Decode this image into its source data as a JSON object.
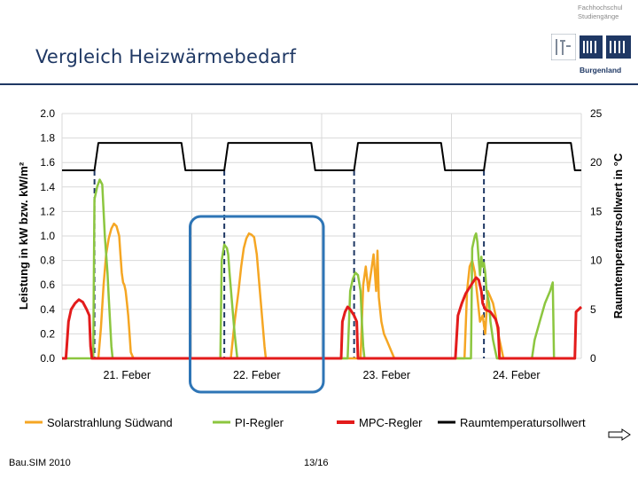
{
  "slide": {
    "title": "Vergleich Heizwärmebedarf",
    "footer_left": "Bau.SIM 2010",
    "page": "13/16",
    "next_icon": "arrow-right-icon"
  },
  "logo": {
    "line1": "Fachhochschul",
    "line2": "Studiengänge",
    "region": "Burgenland"
  },
  "chart_data": {
    "type": "line",
    "ylabel": "Leistung in kW bzw. kW/m²",
    "y2label": "Raumtemperatursollwert in °C",
    "ylim": [
      0,
      2.0
    ],
    "y2lim": [
      0,
      25
    ],
    "yticks": [
      "0.0",
      "0.2",
      "0.4",
      "0.6",
      "0.8",
      "1.0",
      "1.2",
      "1.4",
      "1.6",
      "1.8",
      "2.0"
    ],
    "y2ticks": [
      "0",
      "5",
      "10",
      "15",
      "20",
      "25"
    ],
    "xlim": [
      0,
      4
    ],
    "categories": [
      "21. Feber",
      "22. Feber",
      "23. Feber",
      "24. Feber"
    ],
    "grid": true,
    "legend": "bottom",
    "highlight_box": {
      "day": "22. Feber"
    },
    "colors": {
      "solar": "#f5a623",
      "pi": "#8cc63f",
      "mpc": "#e31b1b",
      "setpoint": "#000000",
      "box": "#2e75b6",
      "dash": "#1f3864"
    },
    "series": [
      {
        "name": "Solarstrahlung Südwand",
        "axis": "y",
        "points": [
          [
            0.28,
            0
          ],
          [
            0.3,
            0.25
          ],
          [
            0.32,
            0.6
          ],
          [
            0.34,
            0.85
          ],
          [
            0.36,
            0.98
          ],
          [
            0.38,
            1.06
          ],
          [
            0.4,
            1.1
          ],
          [
            0.42,
            1.08
          ],
          [
            0.44,
            1.0
          ],
          [
            0.45,
            0.85
          ],
          [
            0.46,
            0.7
          ],
          [
            0.47,
            0.62
          ],
          [
            0.48,
            0.6
          ],
          [
            0.49,
            0.55
          ],
          [
            0.5,
            0.45
          ],
          [
            0.51,
            0.35
          ],
          [
            0.52,
            0.2
          ],
          [
            0.53,
            0.05
          ],
          [
            0.55,
            0
          ],
          [
            1.3,
            0
          ],
          [
            1.33,
            0.3
          ],
          [
            1.36,
            0.55
          ],
          [
            1.38,
            0.75
          ],
          [
            1.4,
            0.9
          ],
          [
            1.42,
            0.98
          ],
          [
            1.44,
            1.02
          ],
          [
            1.46,
            1.01
          ],
          [
            1.48,
            0.99
          ],
          [
            1.5,
            0.85
          ],
          [
            1.52,
            0.6
          ],
          [
            1.54,
            0.35
          ],
          [
            1.56,
            0.1
          ],
          [
            1.57,
            0
          ],
          [
            2.3,
            0
          ],
          [
            2.32,
            0.6
          ],
          [
            2.34,
            0.75
          ],
          [
            2.36,
            0.55
          ],
          [
            2.38,
            0.7
          ],
          [
            2.4,
            0.85
          ],
          [
            2.42,
            0.55
          ],
          [
            2.43,
            0.88
          ],
          [
            2.44,
            0.5
          ],
          [
            2.46,
            0.3
          ],
          [
            2.48,
            0.2
          ],
          [
            2.5,
            0.15
          ],
          [
            2.52,
            0.1
          ],
          [
            2.54,
            0.05
          ],
          [
            2.56,
            0
          ],
          [
            3.1,
            0
          ],
          [
            3.12,
            0.55
          ],
          [
            3.14,
            0.75
          ],
          [
            3.16,
            0.8
          ],
          [
            3.18,
            0.7
          ],
          [
            3.2,
            0.5
          ],
          [
            3.22,
            0.3
          ],
          [
            3.24,
            0.35
          ],
          [
            3.26,
            0.2
          ],
          [
            3.28,
            0.55
          ],
          [
            3.3,
            0.5
          ],
          [
            3.32,
            0.45
          ],
          [
            3.34,
            0.35
          ],
          [
            3.36,
            0.2
          ],
          [
            3.38,
            0.1
          ],
          [
            3.4,
            0
          ]
        ]
      },
      {
        "name": "PI-Regler",
        "axis": "y",
        "points": [
          [
            0,
            0
          ],
          [
            0.24,
            0
          ],
          [
            0.25,
            1.3
          ],
          [
            0.27,
            1.4
          ],
          [
            0.29,
            1.46
          ],
          [
            0.31,
            1.42
          ],
          [
            0.33,
            1.0
          ],
          [
            0.35,
            0.7
          ],
          [
            0.36,
            0.5
          ],
          [
            0.37,
            0.3
          ],
          [
            0.38,
            0.1
          ],
          [
            0.39,
            0
          ],
          [
            1.22,
            0
          ],
          [
            1.23,
            0.8
          ],
          [
            1.25,
            0.93
          ],
          [
            1.27,
            0.9
          ],
          [
            1.28,
            0.85
          ],
          [
            1.29,
            0.7
          ],
          [
            1.31,
            0.45
          ],
          [
            1.33,
            0.2
          ],
          [
            1.35,
            0
          ],
          [
            2.2,
            0
          ],
          [
            2.22,
            0.55
          ],
          [
            2.24,
            0.65
          ],
          [
            2.26,
            0.7
          ],
          [
            2.28,
            0.68
          ],
          [
            2.3,
            0.55
          ],
          [
            2.31,
            0.3
          ],
          [
            2.32,
            0.1
          ],
          [
            2.33,
            0
          ],
          [
            3.15,
            0
          ],
          [
            3.16,
            0.9
          ],
          [
            3.18,
            1.0
          ],
          [
            3.19,
            1.02
          ],
          [
            3.2,
            0.95
          ],
          [
            3.21,
            0.8
          ],
          [
            3.22,
            0.68
          ],
          [
            3.23,
            0.83
          ],
          [
            3.24,
            0.75
          ],
          [
            3.25,
            0.78
          ],
          [
            3.26,
            0.7
          ],
          [
            3.27,
            0.55
          ],
          [
            3.28,
            0.5
          ],
          [
            3.29,
            0.45
          ],
          [
            3.3,
            0.3
          ],
          [
            3.32,
            0.15
          ],
          [
            3.34,
            0.05
          ],
          [
            3.35,
            0
          ],
          [
            3.62,
            0
          ],
          [
            3.64,
            0.15
          ],
          [
            3.68,
            0.3
          ],
          [
            3.72,
            0.45
          ],
          [
            3.76,
            0.55
          ],
          [
            3.78,
            0.62
          ],
          [
            3.79,
            0
          ]
        ]
      },
      {
        "name": "MPC-Regler",
        "axis": "y",
        "points": [
          [
            0,
            0
          ],
          [
            0.03,
            0
          ],
          [
            0.05,
            0.3
          ],
          [
            0.07,
            0.4
          ],
          [
            0.1,
            0.45
          ],
          [
            0.13,
            0.48
          ],
          [
            0.16,
            0.46
          ],
          [
            0.19,
            0.4
          ],
          [
            0.21,
            0.35
          ],
          [
            0.22,
            0.1
          ],
          [
            0.23,
            0
          ],
          [
            2.15,
            0
          ],
          [
            2.16,
            0.3
          ],
          [
            2.18,
            0.38
          ],
          [
            2.2,
            0.42
          ],
          [
            2.22,
            0.4
          ],
          [
            2.25,
            0.35
          ],
          [
            2.27,
            0.3
          ],
          [
            2.28,
            0
          ],
          [
            3.03,
            0
          ],
          [
            3.05,
            0.35
          ],
          [
            3.08,
            0.45
          ],
          [
            3.11,
            0.53
          ],
          [
            3.14,
            0.58
          ],
          [
            3.17,
            0.63
          ],
          [
            3.19,
            0.66
          ],
          [
            3.21,
            0.64
          ],
          [
            3.23,
            0.55
          ],
          [
            3.24,
            0.45
          ],
          [
            3.26,
            0.4
          ],
          [
            3.3,
            0.38
          ],
          [
            3.34,
            0.32
          ],
          [
            3.36,
            0.25
          ],
          [
            3.37,
            0
          ],
          [
            3.95,
            0
          ],
          [
            3.96,
            0.38
          ],
          [
            4.0,
            0.42
          ]
        ]
      },
      {
        "name": "Raumtemperatursollwert",
        "axis": "y2",
        "points": [
          [
            0,
            19.2
          ],
          [
            0.25,
            19.2
          ],
          [
            0.28,
            22
          ],
          [
            0.92,
            22
          ],
          [
            0.95,
            19.2
          ],
          [
            1.25,
            19.2
          ],
          [
            1.28,
            22
          ],
          [
            1.92,
            22
          ],
          [
            1.95,
            19.2
          ],
          [
            2.25,
            19.2
          ],
          [
            2.28,
            22
          ],
          [
            2.92,
            22
          ],
          [
            2.95,
            19.2
          ],
          [
            3.25,
            19.2
          ],
          [
            3.28,
            22
          ],
          [
            3.92,
            22
          ],
          [
            3.95,
            19.2
          ],
          [
            4.0,
            19.2
          ]
        ]
      }
    ],
    "dashed_markers": [
      0.25,
      1.25,
      2.25,
      3.25
    ]
  }
}
